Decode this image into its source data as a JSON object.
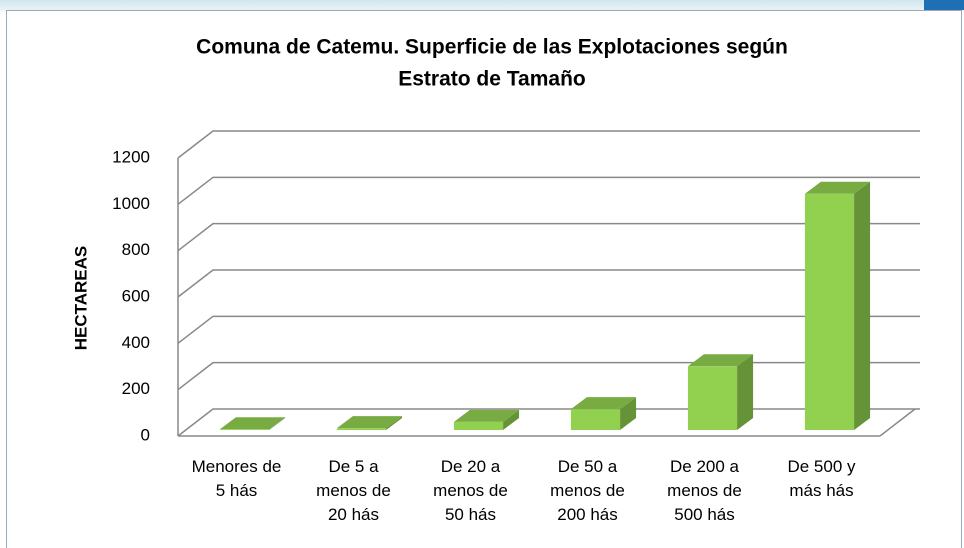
{
  "chart_data": {
    "type": "bar3d",
    "title": [
      "Comuna de Catemu. Superficie de las Explotaciones según",
      "Estrato de Tamaño"
    ],
    "y_label": "HECTAREAS",
    "categories": [
      "Menores de 5 hás",
      "De 5 a menos de 20 hás",
      "De 20 a menos de 50 hás",
      "De 50 a menos de 200 hás",
      "De 200 a menos de 500 hás",
      "De 500 y más hás"
    ],
    "values": [
      3,
      8,
      35,
      90,
      275,
      1020
    ],
    "color": "#92d050",
    "ylim": [
      0,
      1200
    ],
    "yticks": [
      0,
      200,
      400,
      600,
      800,
      1000,
      1200
    ],
    "grid": true
  }
}
